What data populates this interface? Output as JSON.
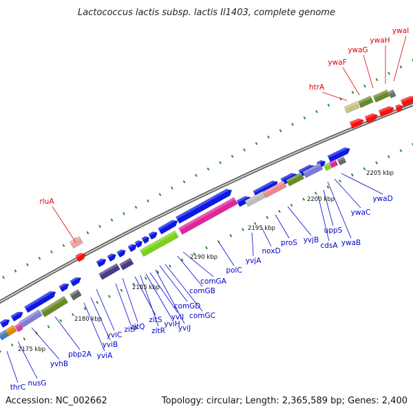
{
  "header": {
    "title": "Lactococcus lactis subsp. lactis Il1403, complete genome"
  },
  "footer": {
    "accession": "Accession: NC_002662",
    "summary": "Topology: circular; Length: 2,365,589 bp; Genes: 2,400"
  },
  "colors": {
    "label_forward": "#0000cc",
    "label_reverse": "#dd0000",
    "forward_gene": "#0b18e8",
    "reverse_gene": "#ff1010",
    "backbone": "#7f7f7f",
    "tick": "#2a8a2a"
  },
  "ticks": [
    "2175 kbp",
    "2180 kbp",
    "2185 kbp",
    "2190 kbp",
    "2195 kbp",
    "2200 kbp",
    "2205 kbp"
  ],
  "forward_labels": [
    "thrC",
    "nusG",
    "yvhB",
    "pbp2A",
    "yviA",
    "yviB",
    "yviC",
    "zitP",
    "zitQ",
    "zitS",
    "zitR",
    "yviH",
    "yviI",
    "yviJ",
    "comGD",
    "comGC",
    "comGB",
    "comGA",
    "polC",
    "yvjA",
    "noxD",
    "proS",
    "yvjB",
    "cdsA",
    "uppS",
    "ywaB",
    "ywaC",
    "ywaD"
  ],
  "reverse_labels": [
    "rluA",
    "htrA",
    "ywaF",
    "ywaG",
    "ywaH",
    "ywaI"
  ]
}
